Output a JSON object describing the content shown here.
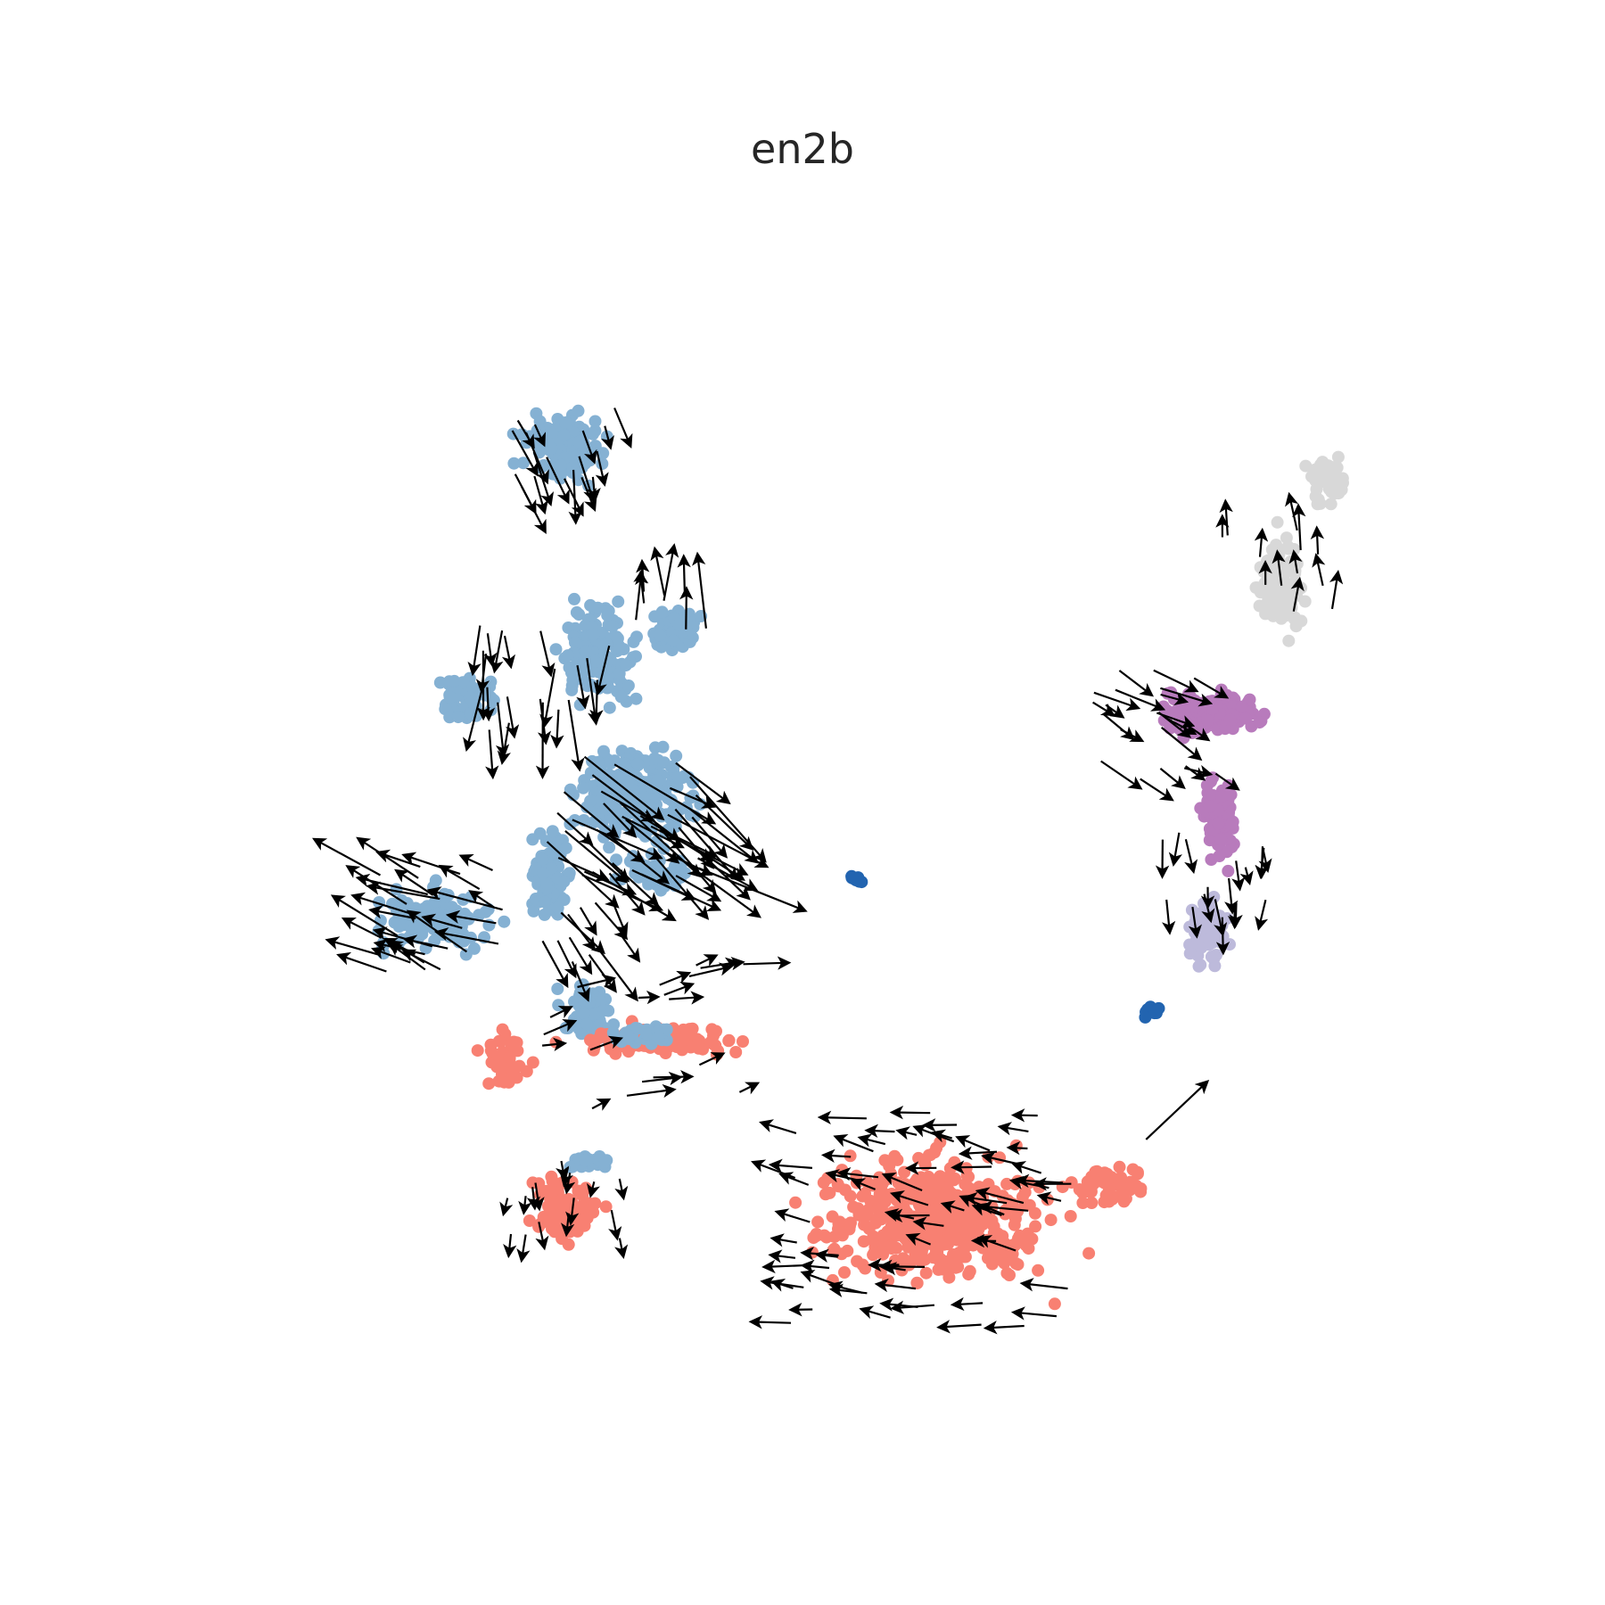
{
  "chart_data": {
    "type": "scatter",
    "title": "en2b",
    "xlabel": "",
    "ylabel": "",
    "axes_visible": false,
    "grid": false,
    "legend": "none",
    "colors": {
      "blue": "#85b1d3",
      "salmon": "#f88072",
      "purple": "#b87bbc",
      "lavender": "#bdbadb",
      "gray": "#d8d8d8",
      "dark_blue": "#2264b0",
      "arrow": "#000000"
    },
    "clusters": [
      {
        "color": "blue",
        "cx": 0.3,
        "cy": 0.82,
        "rx": 0.055,
        "ry": 0.045,
        "n": 120
      },
      {
        "color": "blue",
        "cx": 0.33,
        "cy": 0.64,
        "rx": 0.05,
        "ry": 0.065,
        "n": 160
      },
      {
        "color": "blue",
        "cx": 0.39,
        "cy": 0.66,
        "rx": 0.035,
        "ry": 0.03,
        "n": 60
      },
      {
        "color": "blue",
        "cx": 0.36,
        "cy": 0.52,
        "rx": 0.075,
        "ry": 0.07,
        "n": 240
      },
      {
        "color": "blue",
        "cx": 0.22,
        "cy": 0.6,
        "rx": 0.04,
        "ry": 0.035,
        "n": 60
      },
      {
        "color": "blue",
        "cx": 0.19,
        "cy": 0.41,
        "rx": 0.08,
        "ry": 0.04,
        "n": 140
      },
      {
        "color": "blue",
        "cx": 0.29,
        "cy": 0.45,
        "rx": 0.025,
        "ry": 0.06,
        "n": 80
      },
      {
        "color": "blue",
        "cx": 0.32,
        "cy": 0.33,
        "rx": 0.035,
        "ry": 0.04,
        "n": 60
      },
      {
        "color": "blue",
        "cx": 0.37,
        "cy": 0.45,
        "rx": 0.05,
        "ry": 0.03,
        "n": 50
      },
      {
        "color": "salmon",
        "cx": 0.25,
        "cy": 0.29,
        "rx": 0.03,
        "ry": 0.045,
        "n": 50
      },
      {
        "color": "salmon",
        "cx": 0.38,
        "cy": 0.305,
        "rx": 0.11,
        "ry": 0.02,
        "n": 110
      },
      {
        "color": "blue",
        "cx": 0.37,
        "cy": 0.31,
        "rx": 0.05,
        "ry": 0.015,
        "n": 30
      },
      {
        "color": "salmon",
        "cx": 0.3,
        "cy": 0.16,
        "rx": 0.045,
        "ry": 0.045,
        "n": 110
      },
      {
        "color": "blue",
        "cx": 0.32,
        "cy": 0.2,
        "rx": 0.03,
        "ry": 0.01,
        "n": 20
      },
      {
        "color": "salmon",
        "cx": 0.61,
        "cy": 0.15,
        "rx": 0.15,
        "ry": 0.085,
        "n": 480
      },
      {
        "color": "salmon",
        "cx": 0.76,
        "cy": 0.18,
        "rx": 0.05,
        "ry": 0.03,
        "n": 60
      },
      {
        "color": "purple",
        "cx": 0.84,
        "cy": 0.59,
        "rx": 0.065,
        "ry": 0.03,
        "n": 150
      },
      {
        "color": "purple",
        "cx": 0.85,
        "cy": 0.5,
        "rx": 0.025,
        "ry": 0.06,
        "n": 90
      },
      {
        "color": "lavender",
        "cx": 0.84,
        "cy": 0.4,
        "rx": 0.025,
        "ry": 0.045,
        "n": 70
      },
      {
        "color": "gray",
        "cx": 0.9,
        "cy": 0.7,
        "rx": 0.03,
        "ry": 0.07,
        "n": 110
      },
      {
        "color": "gray",
        "cx": 0.94,
        "cy": 0.79,
        "rx": 0.025,
        "ry": 0.03,
        "n": 60
      },
      {
        "color": "dark_blue",
        "cx": 0.79,
        "cy": 0.33,
        "rx": 0.012,
        "ry": 0.01,
        "n": 12
      },
      {
        "color": "dark_blue",
        "cx": 0.545,
        "cy": 0.445,
        "rx": 0.01,
        "ry": 0.005,
        "n": 8
      }
    ],
    "flow_arrows": [
      {
        "cx": 0.3,
        "cy": 0.82,
        "dx": 0.01,
        "dy": -0.035,
        "spread": 0.045,
        "n": 18
      },
      {
        "cx": 0.35,
        "cy": 0.5,
        "dx": 0.06,
        "dy": -0.045,
        "spread": 0.065,
        "n": 45
      },
      {
        "cx": 0.29,
        "cy": 0.62,
        "dx": 0.0,
        "dy": -0.05,
        "spread": 0.06,
        "n": 22
      },
      {
        "cx": 0.39,
        "cy": 0.68,
        "dx": 0.0,
        "dy": 0.05,
        "spread": 0.03,
        "n": 8
      },
      {
        "cx": 0.19,
        "cy": 0.41,
        "dx": -0.045,
        "dy": 0.02,
        "spread": 0.06,
        "n": 30
      },
      {
        "cx": 0.31,
        "cy": 0.4,
        "dx": 0.025,
        "dy": -0.035,
        "spread": 0.04,
        "n": 12
      },
      {
        "cx": 0.37,
        "cy": 0.3,
        "dx": 0.03,
        "dy": 0.008,
        "spread": 0.09,
        "n": 20
      },
      {
        "cx": 0.3,
        "cy": 0.16,
        "dx": 0.0,
        "dy": -0.02,
        "spread": 0.05,
        "n": 16
      },
      {
        "cx": 0.61,
        "cy": 0.15,
        "dx": -0.03,
        "dy": 0.005,
        "spread": 0.12,
        "n": 70
      },
      {
        "cx": 0.79,
        "cy": 0.22,
        "dx": 0.06,
        "dy": 0.04,
        "spread": 0.005,
        "n": 1
      },
      {
        "cx": 0.8,
        "cy": 0.58,
        "dx": 0.03,
        "dy": -0.015,
        "spread": 0.06,
        "n": 22
      },
      {
        "cx": 0.85,
        "cy": 0.45,
        "dx": 0.0,
        "dy": -0.025,
        "spread": 0.05,
        "n": 18
      },
      {
        "cx": 0.9,
        "cy": 0.71,
        "dx": 0.0,
        "dy": 0.03,
        "spread": 0.05,
        "n": 12
      }
    ]
  }
}
